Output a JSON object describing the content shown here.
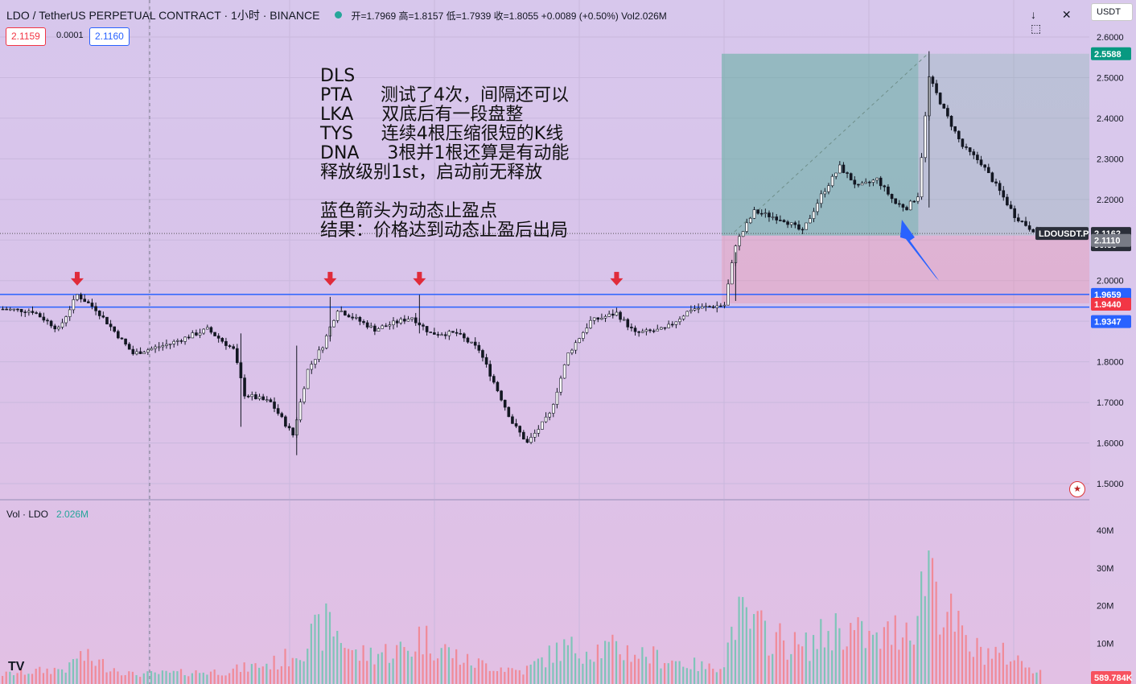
{
  "header": {
    "symbol_title": "LDO / TetherUS PERPETUAL CONTRACT · 1小时 · BINANCE",
    "ohlc": "开=1.7969  高=1.8157  低=1.7939  收=1.8055  +0.0089 (+0.50%)  Vol2.026M"
  },
  "quote": {
    "bid": "2.1159",
    "spread": "0.0001",
    "ask": "2.1160"
  },
  "toolbar": {
    "icons": [
      "arrow-down-icon",
      "close-icon",
      "zoom-icon",
      "maximize-icon"
    ],
    "glyphs": "↓ ✕ ⤢ ⬚"
  },
  "currency_label": "USDT",
  "annotation": {
    "lines": [
      "DLS",
      "PTA     测试了4次，间隔还可以",
      "LKA     双底后有一段盘整",
      "TYS     连续4根压缩很短的K线",
      "DNA     3根并1根还算是有动能",
      "释放级别1st，启动前无释放",
      "",
      "蓝色箭头为动态止盈点",
      "结果：价格达到动态止盈后出局"
    ]
  },
  "volume_pane": {
    "title": "Vol · LDO",
    "value": "2.026M"
  },
  "logo": "TV",
  "chart_data": {
    "type": "candlestick",
    "symbol": "LDOUSDT.P",
    "interval": "1h",
    "ylim": [
      1.47,
      2.64
    ],
    "y_ticks": [
      "2.6000",
      "2.5000",
      "2.4000",
      "2.3000",
      "2.2000",
      "2.1000",
      "2.0000",
      "1.9000",
      "1.8000",
      "1.7000",
      "1.6000",
      "1.5000"
    ],
    "volume_ticks": [
      "40M",
      "30M",
      "20M",
      "10M"
    ],
    "volume_ylim": [
      0,
      46
    ],
    "price_levels": {
      "take_profit": {
        "value": 2.5588,
        "label": "2.5588",
        "color": "#089981"
      },
      "last": {
        "value": 2.1162,
        "label": "2.1162",
        "color": "#2a2e39"
      },
      "countdown": "56:50",
      "symbol_tag": "LDOUSDT.P",
      "entry": {
        "value": 2.111,
        "label": "2.1110",
        "color": "#787b86"
      },
      "resistance": {
        "value": 1.9659,
        "label": "1.9659",
        "color": "#2962ff"
      },
      "stop": {
        "value": 1.944,
        "label": "1.9440",
        "color": "#f23645"
      },
      "support": {
        "value": 1.9347,
        "label": "1.9347",
        "color": "#2962ff"
      },
      "volume_last": {
        "label": "589.784K",
        "color": "#f7525f"
      }
    },
    "position": {
      "entry_x_index": 194,
      "end_x_index": 270,
      "top": 2.5588,
      "entry": 2.111,
      "bottom": 1.944
    },
    "arrows_down_at_index": [
      20,
      88,
      112,
      165
    ],
    "blue_arrow": {
      "from_index": 252,
      "from_price": 2.0,
      "to_index": 242,
      "to_price": 2.15
    },
    "price_path_knots": [
      [
        0,
        1.93
      ],
      [
        8,
        1.925
      ],
      [
        15,
        1.88
      ],
      [
        20,
        1.965
      ],
      [
        25,
        1.93
      ],
      [
        35,
        1.82
      ],
      [
        45,
        1.845
      ],
      [
        55,
        1.88
      ],
      [
        62,
        1.83
      ],
      [
        65,
        1.72
      ],
      [
        72,
        1.7
      ],
      [
        78,
        1.62
      ],
      [
        82,
        1.78
      ],
      [
        86,
        1.84
      ],
      [
        90,
        1.93
      ],
      [
        100,
        1.88
      ],
      [
        110,
        1.91
      ],
      [
        115,
        1.87
      ],
      [
        122,
        1.87
      ],
      [
        128,
        1.83
      ],
      [
        133,
        1.73
      ],
      [
        137,
        1.65
      ],
      [
        141,
        1.6
      ],
      [
        147,
        1.67
      ],
      [
        152,
        1.82
      ],
      [
        158,
        1.9
      ],
      [
        165,
        1.92
      ],
      [
        170,
        1.87
      ],
      [
        178,
        1.88
      ],
      [
        185,
        1.93
      ],
      [
        194,
        1.94
      ],
      [
        197,
        2.09
      ],
      [
        202,
        2.17
      ],
      [
        210,
        2.15
      ],
      [
        215,
        2.12
      ],
      [
        220,
        2.21
      ],
      [
        225,
        2.28
      ],
      [
        230,
        2.23
      ],
      [
        235,
        2.25
      ],
      [
        240,
        2.19
      ],
      [
        243,
        2.18
      ],
      [
        246,
        2.21
      ],
      [
        249,
        2.5
      ],
      [
        253,
        2.42
      ],
      [
        258,
        2.33
      ],
      [
        263,
        2.29
      ],
      [
        268,
        2.22
      ],
      [
        272,
        2.16
      ],
      [
        276,
        2.13
      ],
      [
        279,
        2.116
      ]
    ],
    "volume_knots": [
      [
        0,
        2
      ],
      [
        18,
        4
      ],
      [
        20,
        8
      ],
      [
        35,
        2
      ],
      [
        60,
        3
      ],
      [
        75,
        6
      ],
      [
        85,
        15
      ],
      [
        88,
        18
      ],
      [
        95,
        8
      ],
      [
        110,
        10
      ],
      [
        112,
        14
      ],
      [
        125,
        6
      ],
      [
        140,
        3
      ],
      [
        150,
        10
      ],
      [
        165,
        10
      ],
      [
        190,
        4
      ],
      [
        194,
        6
      ],
      [
        197,
        20
      ],
      [
        205,
        15
      ],
      [
        215,
        10
      ],
      [
        225,
        17
      ],
      [
        235,
        12
      ],
      [
        246,
        20
      ],
      [
        249,
        42
      ],
      [
        252,
        25
      ],
      [
        260,
        10
      ],
      [
        270,
        8
      ],
      [
        279,
        3
      ]
    ]
  }
}
